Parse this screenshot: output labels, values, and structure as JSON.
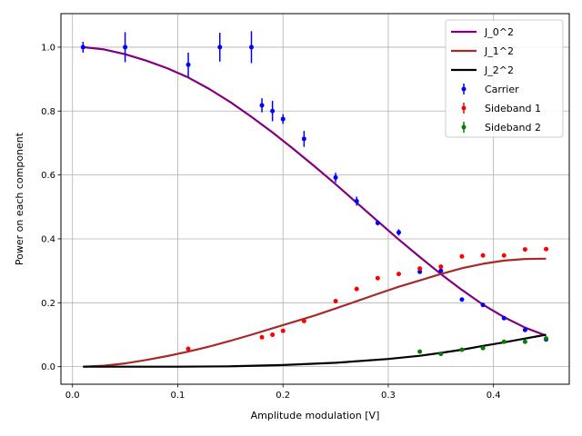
{
  "chart_data": {
    "type": "line",
    "title": "",
    "xlabel": "Amplitude modulation [V]",
    "ylabel": "Power on each component",
    "xlim": [
      -0.011,
      0.472
    ],
    "ylim": [
      -0.055,
      1.105
    ],
    "xticks": [
      0.0,
      0.1,
      0.2,
      0.3,
      0.4
    ],
    "xtick_labels": [
      "0.0",
      "0.1",
      "0.2",
      "0.3",
      "0.4"
    ],
    "yticks": [
      0.0,
      0.2,
      0.4,
      0.6,
      0.8,
      1.0
    ],
    "ytick_labels": [
      "0.0",
      "0.2",
      "0.4",
      "0.6",
      "0.8",
      "1.0"
    ],
    "grid": true,
    "legend_position": "top-right",
    "line_series": [
      {
        "name": "J_0^2",
        "color": "#800080",
        "x": [
          0.01,
          0.03,
          0.05,
          0.07,
          0.09,
          0.11,
          0.13,
          0.15,
          0.17,
          0.19,
          0.21,
          0.23,
          0.25,
          0.27,
          0.29,
          0.31,
          0.33,
          0.35,
          0.37,
          0.39,
          0.41,
          0.43,
          0.45
        ],
        "y": [
          1.0,
          0.993,
          0.978,
          0.958,
          0.934,
          0.905,
          0.869,
          0.828,
          0.782,
          0.733,
          0.681,
          0.627,
          0.571,
          0.513,
          0.455,
          0.398,
          0.343,
          0.29,
          0.24,
          0.194,
          0.155,
          0.122,
          0.097
        ]
      },
      {
        "name": "J_1^2",
        "color": "#a52a2a",
        "x": [
          0.01,
          0.03,
          0.05,
          0.07,
          0.09,
          0.11,
          0.13,
          0.15,
          0.17,
          0.19,
          0.21,
          0.23,
          0.25,
          0.27,
          0.29,
          0.31,
          0.33,
          0.35,
          0.37,
          0.39,
          0.41,
          0.43,
          0.45
        ],
        "y": [
          0.0,
          0.003,
          0.01,
          0.021,
          0.033,
          0.047,
          0.063,
          0.081,
          0.1,
          0.12,
          0.14,
          0.16,
          0.182,
          0.205,
          0.228,
          0.25,
          0.27,
          0.29,
          0.308,
          0.322,
          0.332,
          0.337,
          0.338
        ]
      },
      {
        "name": "J_2^2",
        "color": "#000000",
        "x": [
          0.01,
          0.05,
          0.1,
          0.15,
          0.2,
          0.25,
          0.3,
          0.33,
          0.35,
          0.37,
          0.39,
          0.41,
          0.43,
          0.45
        ],
        "y": [
          0.0,
          0.0,
          0.0,
          0.001,
          0.005,
          0.012,
          0.024,
          0.034,
          0.043,
          0.053,
          0.065,
          0.076,
          0.088,
          0.1
        ]
      }
    ],
    "error_series": [
      {
        "name": "Carrier",
        "color": "#0000ff",
        "x": [
          0.01,
          0.05,
          0.11,
          0.14,
          0.17,
          0.18,
          0.19,
          0.2,
          0.22,
          0.25,
          0.27,
          0.29,
          0.31,
          0.33,
          0.35,
          0.37,
          0.39,
          0.41,
          0.43,
          0.45
        ],
        "y": [
          1.0,
          1.0,
          0.945,
          1.0,
          1.0,
          0.818,
          0.8,
          0.775,
          0.713,
          0.592,
          0.518,
          0.45,
          0.42,
          0.297,
          0.3,
          0.21,
          0.193,
          0.152,
          0.115,
          0.085
        ],
        "err": [
          0.017,
          0.047,
          0.038,
          0.045,
          0.05,
          0.022,
          0.032,
          0.015,
          0.025,
          0.015,
          0.014,
          0.008,
          0.01,
          0.005,
          0.005,
          0.004,
          0.004,
          0.003,
          0.003,
          0.003
        ]
      },
      {
        "name": "Sideband 1",
        "color": "#ff0000",
        "x": [
          0.11,
          0.18,
          0.19,
          0.2,
          0.22,
          0.25,
          0.27,
          0.29,
          0.31,
          0.33,
          0.35,
          0.37,
          0.39,
          0.41,
          0.43,
          0.45
        ],
        "y": [
          0.056,
          0.092,
          0.1,
          0.112,
          0.143,
          0.205,
          0.243,
          0.277,
          0.29,
          0.307,
          0.313,
          0.345,
          0.348,
          0.348,
          0.367,
          0.368
        ],
        "err": [
          0.006,
          0.004,
          0.004,
          0.004,
          0.004,
          0.004,
          0.004,
          0.004,
          0.004,
          0.004,
          0.004,
          0.004,
          0.004,
          0.004,
          0.004,
          0.004
        ]
      },
      {
        "name": "Sideband 2",
        "color": "#008000",
        "x": [
          0.33,
          0.35,
          0.37,
          0.39,
          0.41,
          0.43,
          0.45
        ],
        "y": [
          0.047,
          0.04,
          0.053,
          0.058,
          0.078,
          0.078,
          0.088
        ],
        "err": [
          0.004,
          0.004,
          0.004,
          0.004,
          0.004,
          0.004,
          0.004
        ]
      }
    ]
  }
}
